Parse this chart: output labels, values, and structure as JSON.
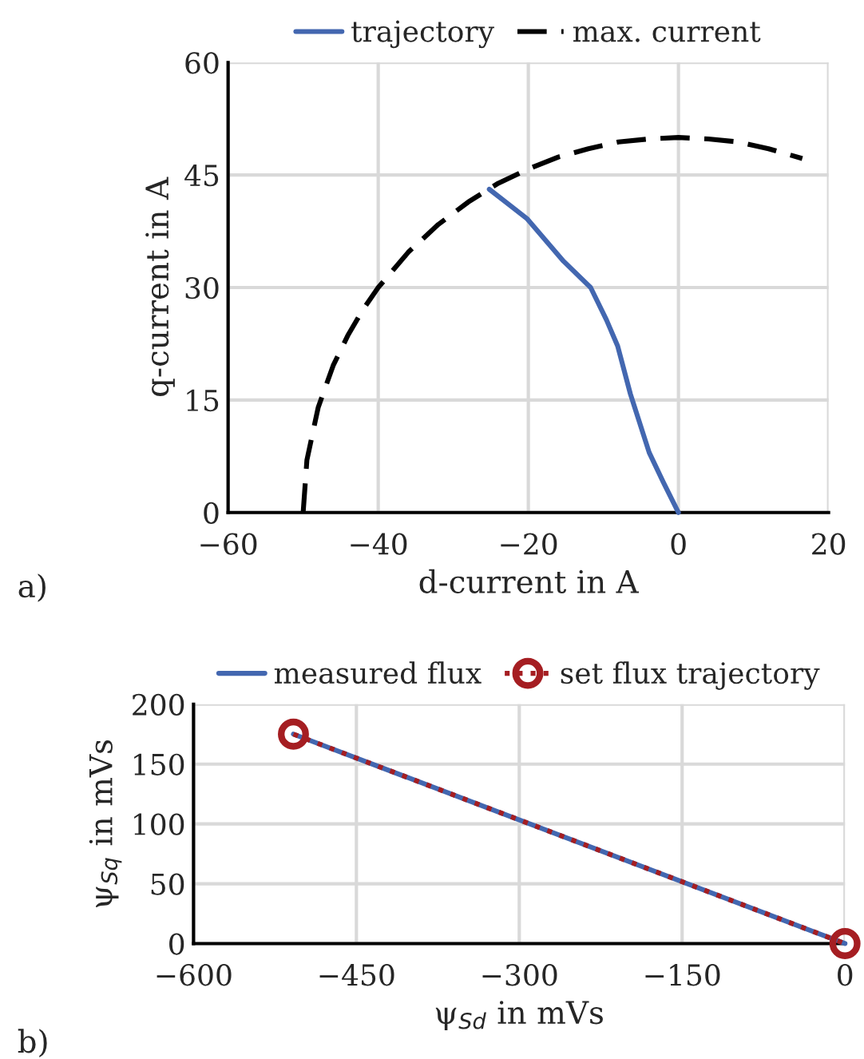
{
  "chart_data": [
    {
      "type": "line",
      "xlabel": "d-current in A",
      "ylabel": "q-current in A",
      "xlim": [
        -60,
        20
      ],
      "xticks": [
        -60,
        -40,
        -20,
        0,
        20
      ],
      "ylim": [
        0,
        60
      ],
      "yticks": [
        0,
        15,
        30,
        45,
        60
      ],
      "grid": true,
      "legend": "top",
      "annotations": [
        "a)"
      ],
      "series": [
        {
          "name": "trajectory",
          "color": "#4367b0",
          "line_style": "solid",
          "x": [
            0,
            -2,
            -3.9,
            -6.4,
            -8.1,
            -9.6,
            -11.7,
            -15.3,
            -20.2,
            -25.2
          ],
          "values": [
            0,
            4,
            8,
            15.8,
            22.2,
            25.7,
            30,
            33.5,
            39.2,
            43.1
          ]
        },
        {
          "name": "max. current",
          "color": "#000000",
          "line_style": "dashed",
          "x": [
            -50,
            -49.5,
            -48,
            -46,
            -44,
            -42,
            -40,
            -36,
            -32,
            -28,
            -24,
            -20,
            -16,
            -12,
            -8,
            -4,
            0,
            4,
            8,
            12,
            16.5
          ],
          "values": [
            0,
            7,
            14,
            19.6,
            23.7,
            27.1,
            30,
            34.7,
            38.4,
            41.4,
            43.9,
            45.8,
            47.4,
            48.5,
            49.4,
            49.8,
            50,
            49.8,
            49.4,
            48.5,
            47.2
          ]
        }
      ]
    },
    {
      "type": "line",
      "xlabel": "ψ$_{Sd}$ in mVs",
      "ylabel": "ψ$_{Sq}$ in mVs",
      "xlim": [
        -600,
        0
      ],
      "xticks": [
        -600,
        -450,
        -300,
        -150,
        0
      ],
      "ylim": [
        0,
        200
      ],
      "yticks": [
        0,
        50,
        100,
        150,
        200
      ],
      "grid": true,
      "legend": "top",
      "annotations": [
        "b)"
      ],
      "series": [
        {
          "name": "measured flux",
          "color": "#4367b0",
          "line_style": "solid",
          "x": [
            -508,
            0
          ],
          "values": [
            175,
            0
          ]
        },
        {
          "name": "set flux trajectory",
          "color": "#a51e22",
          "line_style": "dotted",
          "marker": "circle",
          "x": [
            -508,
            0
          ],
          "values": [
            175,
            0
          ]
        }
      ]
    }
  ]
}
